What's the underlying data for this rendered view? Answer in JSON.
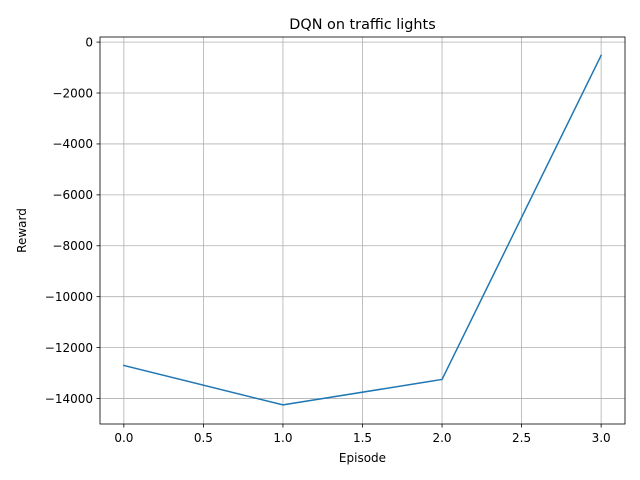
{
  "chart_data": {
    "type": "line",
    "title": "DQN on traffic lights",
    "xlabel": "Episode",
    "ylabel": "Reward",
    "xlim": [
      -0.15,
      3.15
    ],
    "ylim": [
      -15000,
      200
    ],
    "x_ticks": [
      0.0,
      0.5,
      1.0,
      1.5,
      2.0,
      2.5,
      3.0
    ],
    "x_tick_labels": [
      "0.0",
      "0.5",
      "1.0",
      "1.5",
      "2.0",
      "2.5",
      "3.0"
    ],
    "y_ticks": [
      0,
      -2000,
      -4000,
      -6000,
      -8000,
      -10000,
      -12000,
      -14000
    ],
    "y_tick_labels": [
      "0",
      "−2000",
      "−4000",
      "−6000",
      "−8000",
      "−10000",
      "−12000",
      "−14000"
    ],
    "grid": true,
    "series": [
      {
        "color": "#1f77b4",
        "x": [
          0,
          1,
          2,
          3
        ],
        "y": [
          -12700,
          -14250,
          -13250,
          -520
        ]
      }
    ]
  }
}
